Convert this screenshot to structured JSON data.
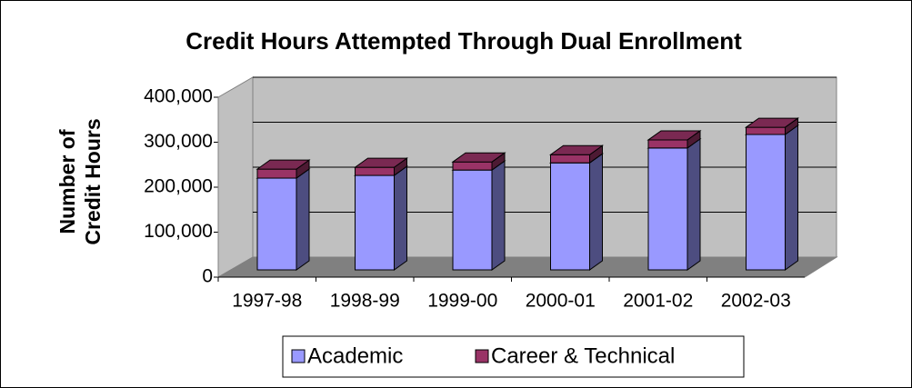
{
  "chart_data": {
    "type": "bar3d_stacked",
    "title": "Credit Hours Attempted Through Dual Enrollment",
    "ylabel": [
      "Number of",
      "Credit Hours"
    ],
    "categories": [
      "1997-98",
      "1998-99",
      "1999-00",
      "2000-01",
      "2001-02",
      "2002-03"
    ],
    "series": [
      {
        "name": "Academic",
        "color": "#9999ff",
        "values": [
          204000,
          210000,
          222000,
          238000,
          271000,
          301000
        ]
      },
      {
        "name": "Career & Technical",
        "color": "#993366",
        "values": [
          20000,
          18000,
          18000,
          18000,
          18000,
          16000
        ]
      }
    ],
    "ylim": [
      0,
      400000
    ],
    "yticks": [
      0,
      {
        "value": 100000,
        "label": "100,000"
      },
      {
        "value": 200000,
        "label": "200,000"
      },
      {
        "value": 300000,
        "label": "300,000"
      },
      {
        "value": 400000,
        "label": "400,000"
      }
    ],
    "grid": true,
    "legend": "bottom"
  }
}
